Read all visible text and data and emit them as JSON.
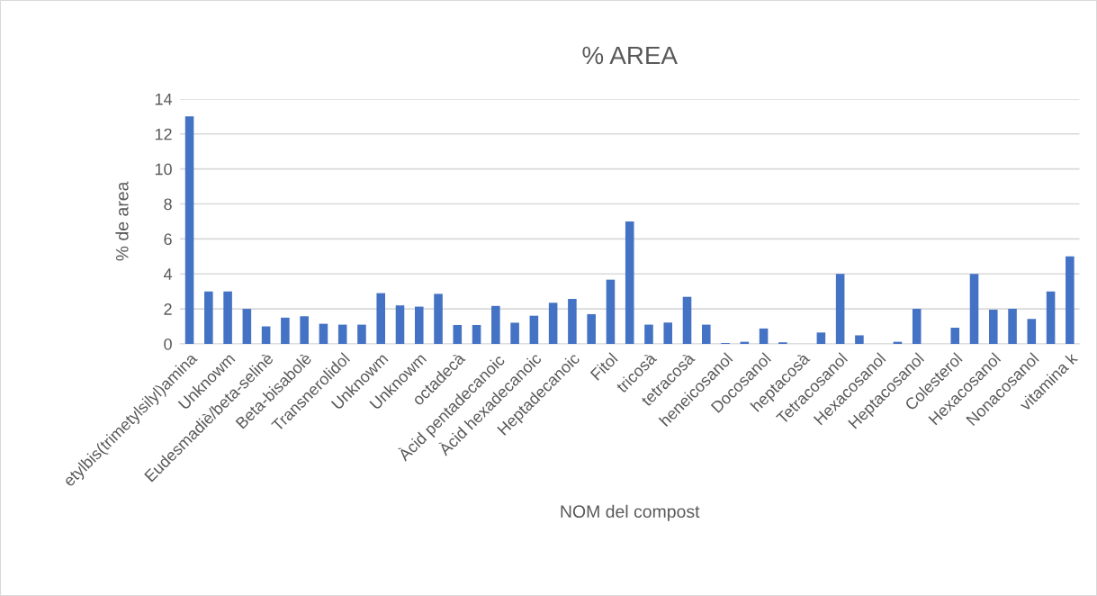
{
  "chart_data": {
    "type": "bar",
    "title": "% AREA",
    "xlabel": "NOM del compost",
    "ylabel": "% de area",
    "categories": [
      "etylbis(trimetylsilyl)amina",
      null,
      "Unknowm",
      null,
      "Eudesmadiè/beta-selinè",
      null,
      "Beta-bisabolè",
      null,
      "Transnerolidol",
      null,
      "Unknowm",
      null,
      "Unknowm",
      null,
      "octadecà",
      null,
      "Àcid pentadecanoic",
      null,
      "Àcid hexadecanoic",
      null,
      "Heptadecanoic",
      null,
      "Fitol",
      null,
      "tricosà",
      null,
      "tetracosà",
      null,
      "heneicosanol",
      null,
      "Docosanol",
      null,
      "heptacosà",
      null,
      "Tetracosanol",
      null,
      "Hexacosanol",
      null,
      "Heptacosanol",
      null,
      "Colesterol",
      null,
      "Hexacosanol",
      null,
      "Nonacosanol",
      null,
      "vitamina k"
    ],
    "values": [
      13.0,
      3.0,
      3.0,
      2.0,
      1.0,
      1.5,
      1.58,
      1.15,
      1.1,
      1.1,
      2.9,
      2.2,
      2.13,
      2.86,
      1.08,
      1.08,
      2.17,
      1.21,
      1.61,
      2.35,
      2.57,
      1.7,
      3.67,
      7.0,
      1.1,
      1.22,
      2.69,
      1.1,
      0.05,
      0.12,
      0.88,
      0.09,
      null,
      0.65,
      4.0,
      0.49,
      null,
      0.12,
      2.0,
      null,
      0.92,
      4.0,
      1.96,
      2.0,
      1.43,
      2.99,
      5.0
    ],
    "color": "#4472c4",
    "ylim": [
      0,
      14
    ],
    "yticks": [
      0,
      2,
      4,
      6,
      8,
      10,
      12,
      14
    ],
    "grid": "y",
    "legend": false
  }
}
